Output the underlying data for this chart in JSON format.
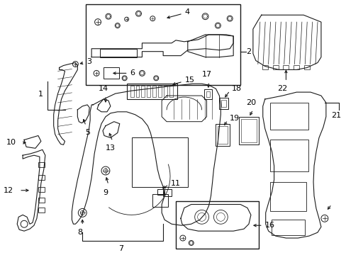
{
  "background_color": "#ffffff",
  "fig_width": 4.89,
  "fig_height": 3.6,
  "dpi": 100,
  "line_color": "#1a1a1a",
  "text_color": "#000000"
}
